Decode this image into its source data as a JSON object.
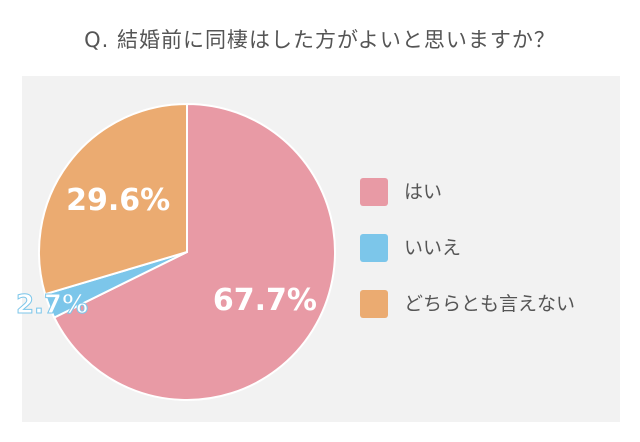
{
  "title": "Q. 結婚前に同棲はした方がよいと思いますか？",
  "chart_data": {
    "type": "pie",
    "title": "Q. 結婚前に同棲はした方がよいと思いますか？",
    "slices": [
      {
        "label": "はい",
        "value": 67.7,
        "color": "#e89aa5",
        "display": "67.7%"
      },
      {
        "label": "いいえ",
        "value": 2.7,
        "color": "#7cc6ea",
        "display": "2.7%"
      },
      {
        "label": "どちらとも言えない",
        "value": 29.6,
        "color": "#ebab71",
        "display": "29.6%"
      }
    ],
    "legend_position": "right"
  }
}
